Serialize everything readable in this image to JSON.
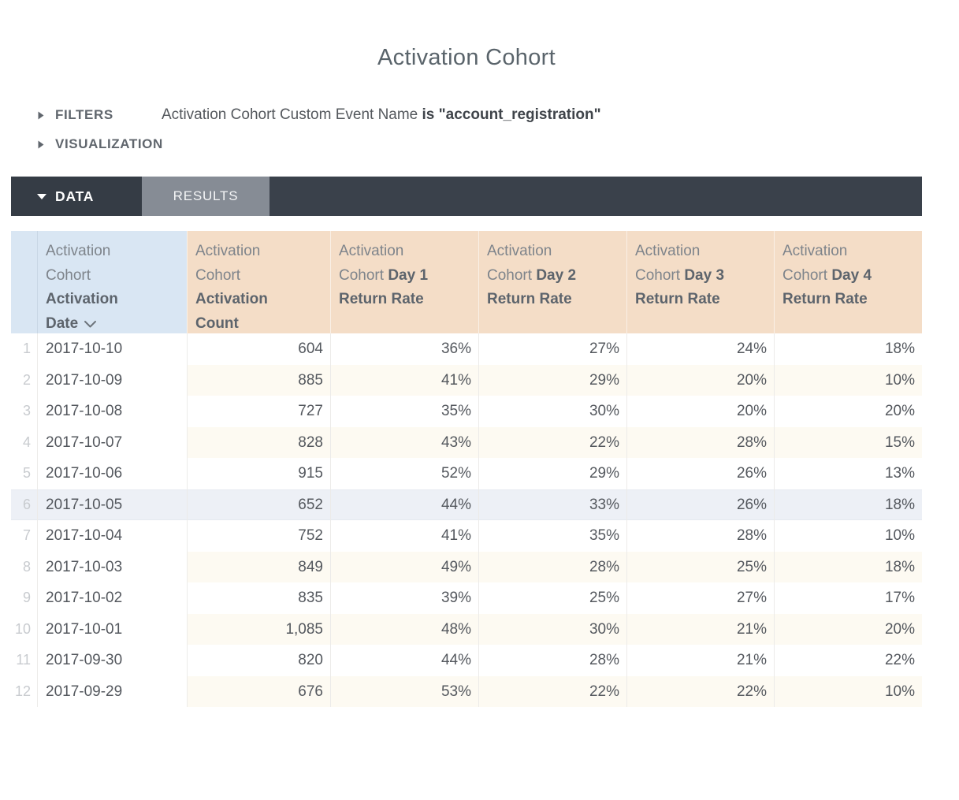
{
  "page": {
    "title": "Activation Cohort"
  },
  "filters": {
    "label": "FILTERS",
    "description_regular": "Activation Cohort Custom Event Name ",
    "description_bold": "is \"account_registration\""
  },
  "visualization": {
    "label": "VISUALIZATION"
  },
  "tabs": {
    "data": "DATA",
    "results": "RESULTS"
  },
  "icons": {
    "filters_toggle": "triangle-right-icon",
    "visualization_toggle": "triangle-right-icon",
    "data_tab": "caret-down-icon",
    "date_header": "chevron-down-sort-icon"
  },
  "colors": {
    "header_blue": "#d9e6f3",
    "header_tan": "#f4ddc7",
    "stripe_cream": "#fdfaf2",
    "row_highlight": "#edf0f6",
    "bar_dark": "#3a414b",
    "tab_active": "#353c45",
    "tab_results": "#868c95",
    "text_dark": "#54585e",
    "text_gray": "#7e848b",
    "header_bold": "#5d646c",
    "row_number_gray": "#c8cbcf"
  },
  "table": {
    "columns": [
      {
        "key": "row-number",
        "theme": "blue numcol",
        "lines": []
      },
      {
        "key": "activation-date",
        "theme": "blue",
        "sort": "descending",
        "lines": [
          [
            {
              "t": "Activation"
            }
          ],
          [
            {
              "t": "Cohort"
            }
          ],
          [
            {
              "t": "Activation",
              "b": true
            }
          ],
          [
            {
              "t": "Date",
              "b": true
            }
          ]
        ]
      },
      {
        "key": "activation-count",
        "theme": "tan",
        "lines": [
          [
            {
              "t": "Activation"
            }
          ],
          [
            {
              "t": "Cohort"
            }
          ],
          [
            {
              "t": "Activation",
              "b": true
            }
          ],
          [
            {
              "t": "Count",
              "b": true
            }
          ]
        ]
      },
      {
        "key": "day1-return-rate",
        "theme": "tan",
        "lines": [
          [
            {
              "t": "Activation"
            }
          ],
          [
            {
              "t": "Cohort "
            },
            {
              "t": "Day 1",
              "b": true
            }
          ],
          [
            {
              "t": "Return Rate",
              "b": true
            }
          ]
        ]
      },
      {
        "key": "day2-return-rate",
        "theme": "tan",
        "lines": [
          [
            {
              "t": "Activation"
            }
          ],
          [
            {
              "t": "Cohort "
            },
            {
              "t": "Day 2",
              "b": true
            }
          ],
          [
            {
              "t": "Return Rate",
              "b": true
            }
          ]
        ]
      },
      {
        "key": "day3-return-rate",
        "theme": "tan",
        "lines": [
          [
            {
              "t": "Activation"
            }
          ],
          [
            {
              "t": "Cohort "
            },
            {
              "t": "Day 3",
              "b": true
            }
          ],
          [
            {
              "t": "Return Rate",
              "b": true
            }
          ]
        ]
      },
      {
        "key": "day4-return-rate",
        "theme": "tan",
        "lines": [
          [
            {
              "t": "Activation"
            }
          ],
          [
            {
              "t": "Cohort "
            },
            {
              "t": "Day 4",
              "b": true
            }
          ],
          [
            {
              "t": "Return Rate",
              "b": true
            }
          ]
        ]
      }
    ],
    "rows": [
      {
        "num": "1",
        "date": "2017-10-10",
        "count": "604",
        "day1": "36%",
        "day2": "27%",
        "day3": "24%",
        "day4": "18%"
      },
      {
        "num": "2",
        "date": "2017-10-09",
        "count": "885",
        "day1": "41%",
        "day2": "29%",
        "day3": "20%",
        "day4": "10%"
      },
      {
        "num": "3",
        "date": "2017-10-08",
        "count": "727",
        "day1": "35%",
        "day2": "30%",
        "day3": "20%",
        "day4": "20%"
      },
      {
        "num": "4",
        "date": "2017-10-07",
        "count": "828",
        "day1": "43%",
        "day2": "22%",
        "day3": "28%",
        "day4": "15%"
      },
      {
        "num": "5",
        "date": "2017-10-06",
        "count": "915",
        "day1": "52%",
        "day2": "29%",
        "day3": "26%",
        "day4": "13%"
      },
      {
        "num": "6",
        "date": "2017-10-05",
        "count": "652",
        "day1": "44%",
        "day2": "33%",
        "day3": "26%",
        "day4": "18%",
        "highlighted": true
      },
      {
        "num": "7",
        "date": "2017-10-04",
        "count": "752",
        "day1": "41%",
        "day2": "35%",
        "day3": "28%",
        "day4": "10%"
      },
      {
        "num": "8",
        "date": "2017-10-03",
        "count": "849",
        "day1": "49%",
        "day2": "28%",
        "day3": "25%",
        "day4": "18%"
      },
      {
        "num": "9",
        "date": "2017-10-02",
        "count": "835",
        "day1": "39%",
        "day2": "25%",
        "day3": "27%",
        "day4": "17%"
      },
      {
        "num": "10",
        "date": "2017-10-01",
        "count": "1,085",
        "day1": "48%",
        "day2": "30%",
        "day3": "21%",
        "day4": "20%"
      },
      {
        "num": "11",
        "date": "2017-09-30",
        "count": "820",
        "day1": "44%",
        "day2": "28%",
        "day3": "21%",
        "day4": "22%"
      },
      {
        "num": "12",
        "date": "2017-09-29",
        "count": "676",
        "day1": "53%",
        "day2": "22%",
        "day3": "22%",
        "day4": "10%"
      }
    ]
  }
}
